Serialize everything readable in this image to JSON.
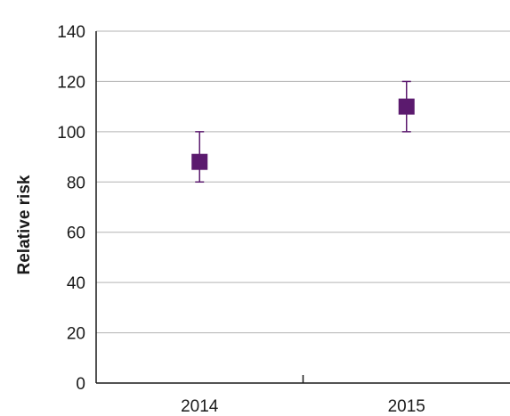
{
  "chart_data": {
    "type": "scatter",
    "title": "",
    "xlabel": "",
    "ylabel": "Relative risk",
    "categories": [
      "2014",
      "2015"
    ],
    "series": [
      {
        "values": [
          88,
          110
        ],
        "error_low": [
          80,
          100
        ],
        "error_high": [
          100,
          120
        ]
      }
    ],
    "ylim": [
      0,
      140
    ],
    "yticks": [
      0,
      20,
      40,
      60,
      80,
      100,
      120,
      140
    ],
    "grid": "horizontal",
    "marker": "square",
    "color": "#5b1a6e"
  }
}
